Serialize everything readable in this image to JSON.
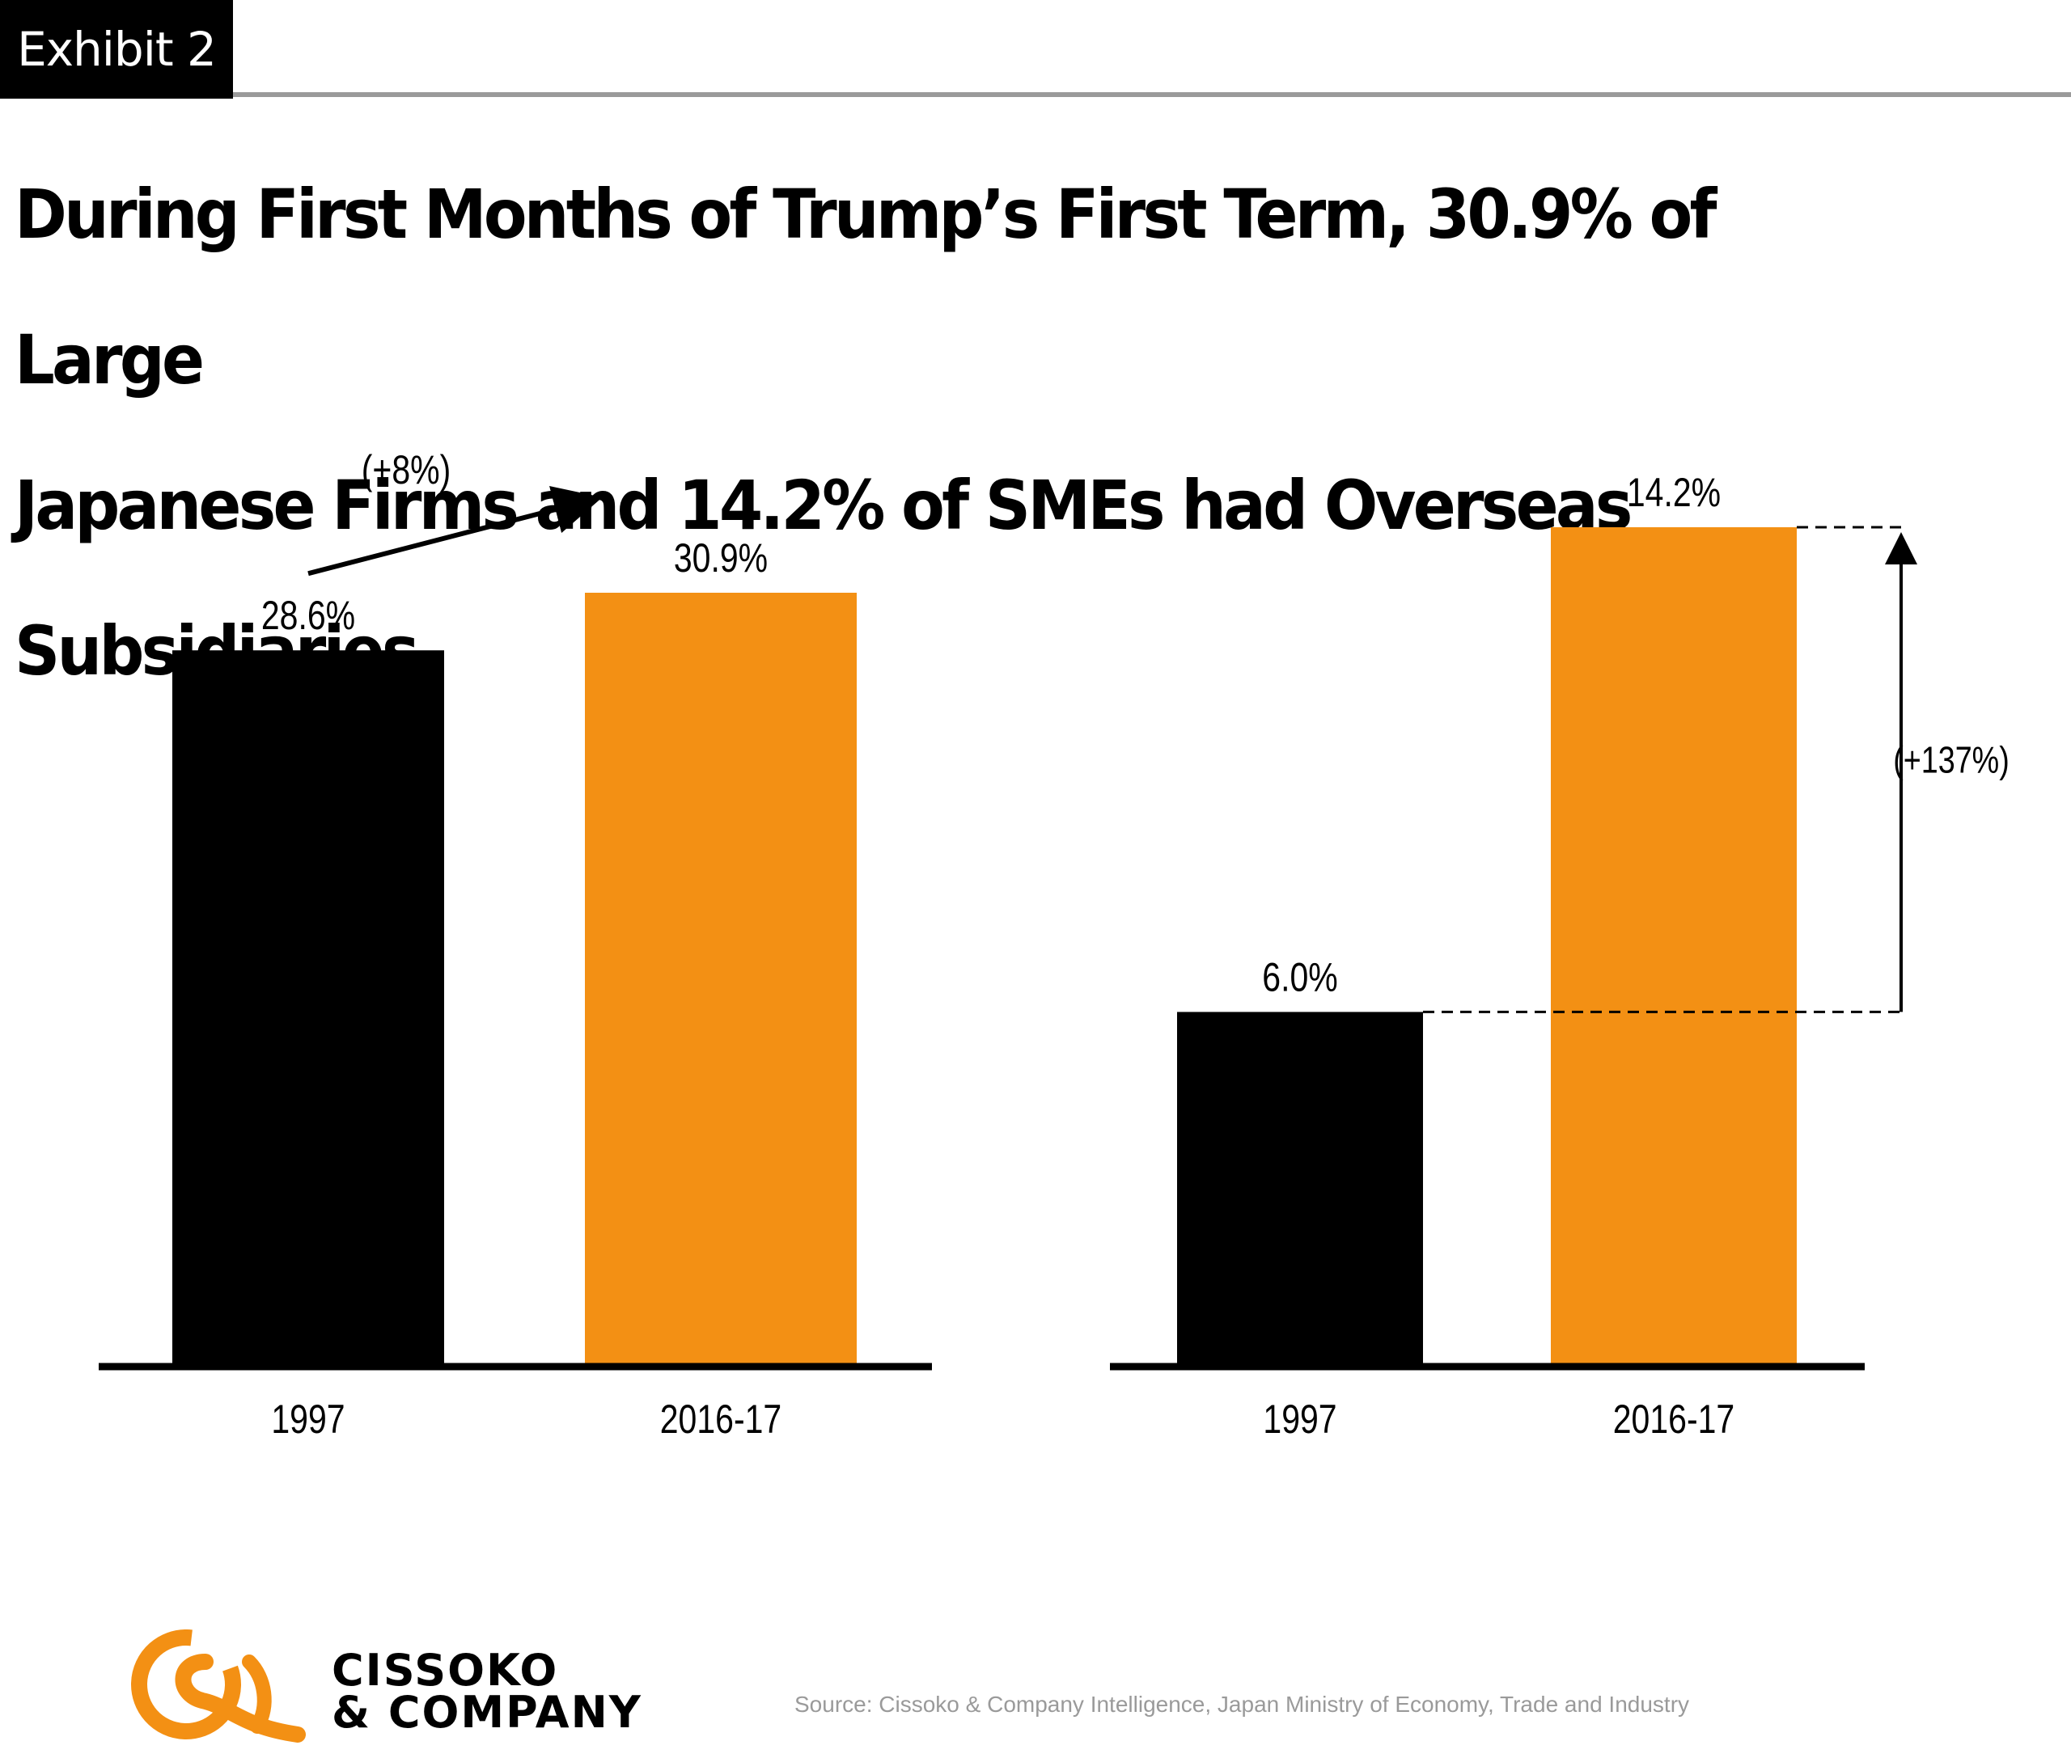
{
  "exhibit": {
    "label": "Exhibit 2"
  },
  "headline": {
    "line1": "During First Months of Trump’s First Term, 30.9% of Large",
    "line2": "Japanese Firms and 14.2% of SMEs had Overseas Subsidiaries."
  },
  "chart_data": [
    {
      "type": "bar",
      "categories": [
        "1997",
        "2016-17"
      ],
      "values": [
        28.6,
        30.9
      ],
      "value_labels": [
        "28.6%",
        "30.9%"
      ],
      "colors": [
        "#000000",
        "#f39014"
      ],
      "annotation": {
        "text": "(+8%)",
        "style": "arrow from first to second label"
      },
      "title": "",
      "xlabel": "",
      "ylabel": "",
      "ylim": [
        0,
        32.4
      ],
      "grid": false,
      "legend": "none"
    },
    {
      "type": "bar",
      "categories": [
        "1997",
        "2016-17"
      ],
      "values": [
        6.0,
        14.2
      ],
      "value_labels": [
        "6.0%",
        "14.2%"
      ],
      "colors": [
        "#000000",
        "#f39014"
      ],
      "annotation": {
        "text": "(+137%)",
        "style": "vertical arrow with dashed reference lines"
      },
      "title": "",
      "xlabel": "",
      "ylabel": "",
      "ylim": [
        0,
        14.2
      ],
      "grid": false,
      "legend": "none"
    }
  ],
  "branding": {
    "logo_line1": "CISSOKO",
    "logo_line2": "& COMPANY",
    "logo_color": "#f39014"
  },
  "footer": {
    "source": "Source: Cissoko & Company Intelligence,  Japan Ministry of Economy, Trade and Industry"
  }
}
